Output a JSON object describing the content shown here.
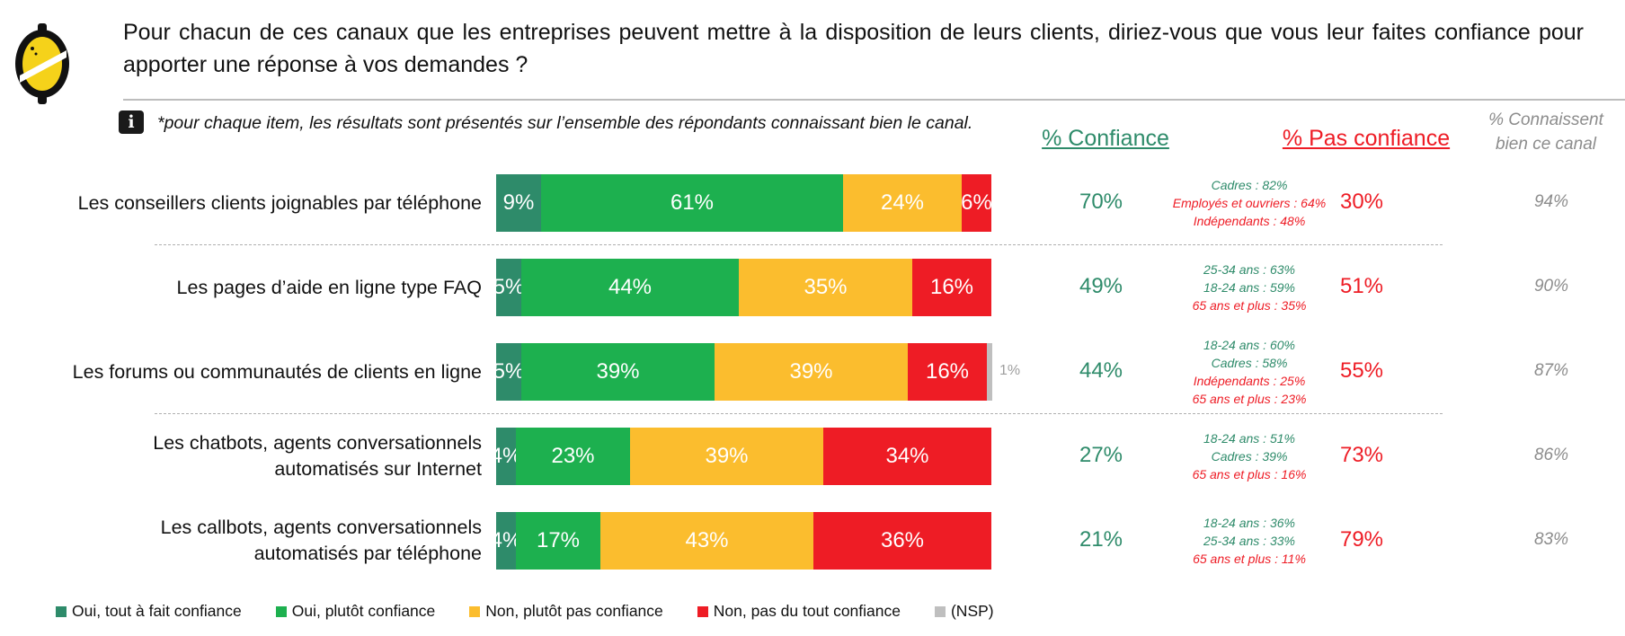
{
  "question": "Pour chacun de ces canaux que les entreprises peuvent mettre à la disposition de leurs clients, diriez-vous que vous leur faites confiance pour apporter une réponse à vos demandes ?",
  "note": "*pour chaque item, les résultats sont présentés sur l’ensemble des répondants connaissant bien le canal.",
  "icons": {
    "logo": "lemon-logo-icon",
    "info": "info-icon"
  },
  "colors": {
    "tout_a_fait": "#2e8b6a",
    "plutot": "#1db04f",
    "plutot_pas": "#fbbd2e",
    "pas_du_tout": "#ee1c25",
    "nsp": "#bfbfbf",
    "confiance_text": "#2e8b6a",
    "pas_confiance_text": "#ee1c25",
    "connaissent_text": "#8c8c8c"
  },
  "headers": {
    "confiance": "% Confiance",
    "pas_confiance": "% Pas confiance",
    "connaissent_line1": "% Connaissent",
    "connaissent_line2": "bien ce canal"
  },
  "chart_data": {
    "type": "bar",
    "orientation": "horizontal",
    "stacked": true,
    "categories": [
      "Les conseillers clients joignables par téléphone",
      "Les pages d’aide en ligne type FAQ",
      "Les forums ou communautés de clients en ligne",
      "Les chatbots, agents conversationnels automatisés sur Internet",
      "Les callbots, agents conversationnels automatisés par téléphone"
    ],
    "series": [
      {
        "name": "Oui, tout à fait confiance",
        "values": [
          9,
          5,
          5,
          4,
          4
        ],
        "labels": [
          "9%",
          "5%",
          "5%",
          "4%",
          "4%"
        ]
      },
      {
        "name": "Oui, plutôt confiance",
        "values": [
          61,
          44,
          39,
          23,
          17
        ],
        "labels": [
          "61%",
          "44%",
          "39%",
          "23%",
          "17%"
        ]
      },
      {
        "name": "Non, plutôt pas confiance",
        "values": [
          24,
          35,
          39,
          39,
          43
        ],
        "labels": [
          "24%",
          "35%",
          "39%",
          "39%",
          "43%"
        ]
      },
      {
        "name": "Non, pas du tout confiance",
        "values": [
          6,
          16,
          16,
          34,
          36
        ],
        "labels": [
          "6%",
          "16%",
          "16%",
          "34%",
          "36%"
        ]
      },
      {
        "name": "(NSP)",
        "values": [
          0,
          0,
          1,
          0,
          0
        ],
        "labels": [
          "",
          "",
          "1%",
          "",
          ""
        ]
      }
    ],
    "xlim": [
      0,
      100
    ],
    "legend_position": "bottom",
    "rows": [
      {
        "label_lines": [
          "Les conseillers clients joignables par téléphone"
        ],
        "confiance": "70%",
        "pas_confiance": "30%",
        "connaissent": "94%",
        "sub": [
          {
            "text": "Cadres : 82%",
            "tone": "pos"
          },
          {
            "text": "Employés et ouvriers : 64%",
            "tone": "neg"
          },
          {
            "text": "Indépendants : 48%",
            "tone": "neg"
          }
        ]
      },
      {
        "label_lines": [
          "Les pages d’aide en ligne type FAQ"
        ],
        "confiance": "49%",
        "pas_confiance": "51%",
        "connaissent": "90%",
        "sub": [
          {
            "text": "25-34 ans : 63%",
            "tone": "pos"
          },
          {
            "text": "18-24 ans : 59%",
            "tone": "pos"
          },
          {
            "text": "65 ans et plus : 35%",
            "tone": "neg"
          }
        ]
      },
      {
        "label_lines": [
          "Les forums ou communautés de clients en ligne"
        ],
        "confiance": "44%",
        "pas_confiance": "55%",
        "connaissent": "87%",
        "sub": [
          {
            "text": "18-24 ans : 60%",
            "tone": "pos"
          },
          {
            "text": "Cadres : 58%",
            "tone": "pos"
          },
          {
            "text": "Indépendants : 25%",
            "tone": "neg"
          },
          {
            "text": "65 ans et plus : 23%",
            "tone": "neg"
          }
        ]
      },
      {
        "label_lines": [
          "Les chatbots, agents conversationnels",
          "automatisés sur Internet"
        ],
        "confiance": "27%",
        "pas_confiance": "73%",
        "connaissent": "86%",
        "sub": [
          {
            "text": "18-24 ans : 51%",
            "tone": "pos"
          },
          {
            "text": "Cadres : 39%",
            "tone": "pos"
          },
          {
            "text": "65 ans et plus : 16%",
            "tone": "neg"
          }
        ]
      },
      {
        "label_lines": [
          "Les callbots, agents conversationnels",
          "automatisés par téléphone"
        ],
        "confiance": "21%",
        "pas_confiance": "79%",
        "connaissent": "83%",
        "sub": [
          {
            "text": "18-24 ans : 36%",
            "tone": "pos"
          },
          {
            "text": "25-34 ans : 33%",
            "tone": "pos"
          },
          {
            "text": "65 ans et plus : 11%",
            "tone": "neg"
          }
        ]
      }
    ]
  }
}
